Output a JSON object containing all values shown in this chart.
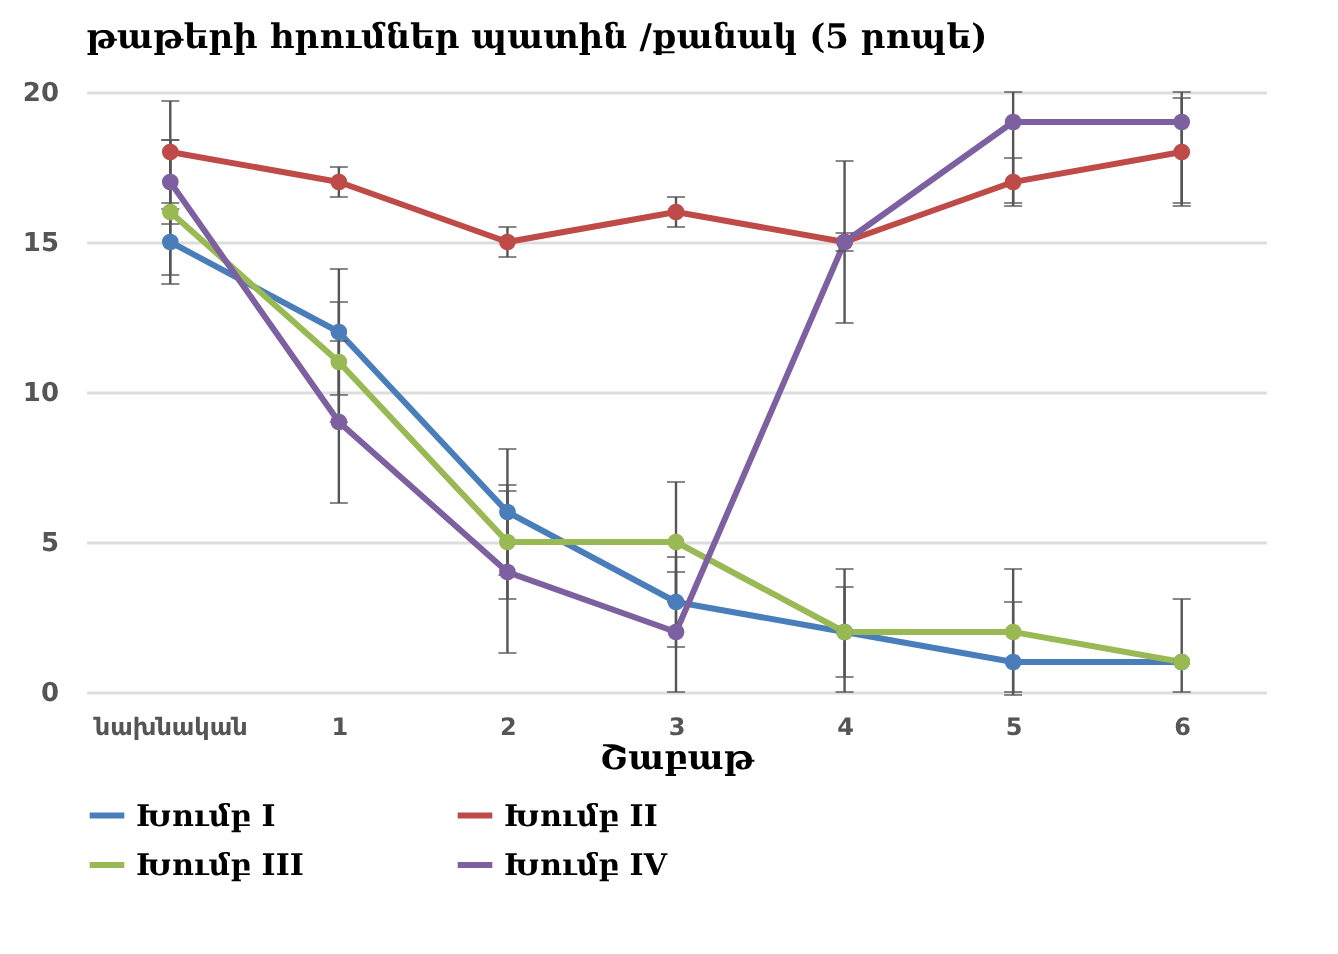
{
  "chart_data": {
    "type": "line",
    "title": "թաթերի հրումներ պատին /քանակ (5 րոպե)",
    "xlabel": "Շաբաթ",
    "categories": [
      "նախնական",
      "1",
      "2",
      "3",
      "4",
      "5",
      "6"
    ],
    "series": [
      {
        "name": "Խումբ I",
        "color": "#4a7ebb",
        "values": [
          15,
          12,
          6,
          3,
          2,
          1,
          1
        ],
        "errors": [
          1.1,
          2.1,
          2.1,
          1.5,
          1.5,
          [
            0,
            3
          ],
          null
        ]
      },
      {
        "name": "Խումբ  II",
        "color": "#be4b48",
        "values": [
          18,
          17,
          15,
          16,
          15,
          17,
          18
        ],
        "errors": [
          1.7,
          0.5,
          0.5,
          0.5,
          0.3,
          0.8,
          1.8
        ]
      },
      {
        "name": "Խումբ III",
        "color": "#98b954",
        "values": [
          16,
          11,
          5,
          5,
          2,
          2,
          1
        ],
        "errors": [
          2.4,
          2,
          1.9,
          2,
          [
            0,
            4.1
          ],
          2.1,
          [
            0,
            3.1
          ]
        ]
      },
      {
        "name": "Խումբ IV",
        "color": "#7d60a0",
        "values": [
          17,
          9,
          4,
          2,
          15,
          19,
          19
        ],
        "errors": [
          1.4,
          2.7,
          2.7,
          [
            0,
            4
          ],
          2.7,
          [
            16.3,
            20
          ],
          [
            16.3,
            20
          ]
        ]
      }
    ],
    "ylim": [
      0,
      20
    ],
    "yticks": [
      0,
      5,
      10,
      15,
      20
    ],
    "grid": "y",
    "legend": "bottom",
    "marker": "circle",
    "line_style": "solid"
  }
}
